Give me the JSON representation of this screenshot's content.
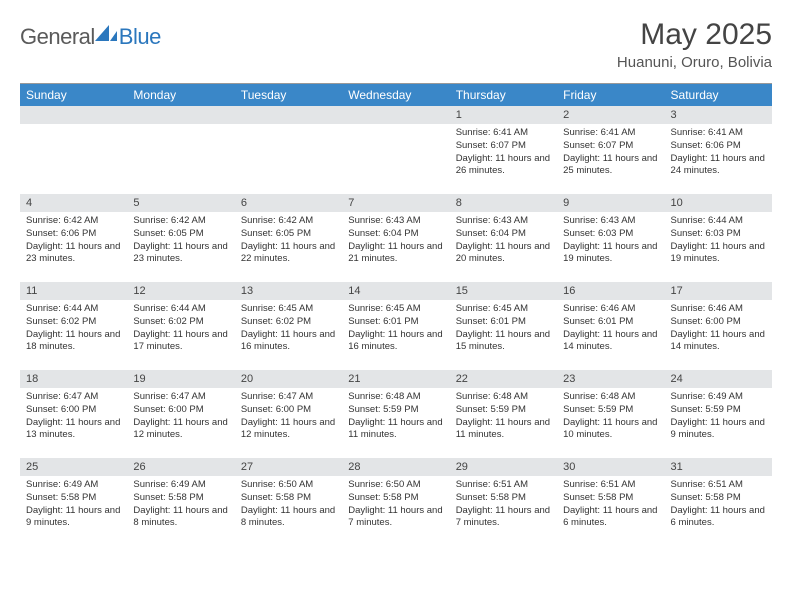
{
  "logo": {
    "text1": "General",
    "text2": "Blue"
  },
  "title": "May 2025",
  "location": "Huanuni, Oruro, Bolivia",
  "colors": {
    "header_bg": "#3a87c8",
    "header_text": "#ffffff",
    "daynum_bg": "#e3e5e7",
    "text": "#333333",
    "logo_gray": "#5a5a5a",
    "logo_blue": "#2b77bd"
  },
  "dow": [
    "Sunday",
    "Monday",
    "Tuesday",
    "Wednesday",
    "Thursday",
    "Friday",
    "Saturday"
  ],
  "weeks": [
    [
      {
        "n": "",
        "sr": "",
        "ss": "",
        "dl": ""
      },
      {
        "n": "",
        "sr": "",
        "ss": "",
        "dl": ""
      },
      {
        "n": "",
        "sr": "",
        "ss": "",
        "dl": ""
      },
      {
        "n": "",
        "sr": "",
        "ss": "",
        "dl": ""
      },
      {
        "n": "1",
        "sr": "Sunrise: 6:41 AM",
        "ss": "Sunset: 6:07 PM",
        "dl": "Daylight: 11 hours and 26 minutes."
      },
      {
        "n": "2",
        "sr": "Sunrise: 6:41 AM",
        "ss": "Sunset: 6:07 PM",
        "dl": "Daylight: 11 hours and 25 minutes."
      },
      {
        "n": "3",
        "sr": "Sunrise: 6:41 AM",
        "ss": "Sunset: 6:06 PM",
        "dl": "Daylight: 11 hours and 24 minutes."
      }
    ],
    [
      {
        "n": "4",
        "sr": "Sunrise: 6:42 AM",
        "ss": "Sunset: 6:06 PM",
        "dl": "Daylight: 11 hours and 23 minutes."
      },
      {
        "n": "5",
        "sr": "Sunrise: 6:42 AM",
        "ss": "Sunset: 6:05 PM",
        "dl": "Daylight: 11 hours and 23 minutes."
      },
      {
        "n": "6",
        "sr": "Sunrise: 6:42 AM",
        "ss": "Sunset: 6:05 PM",
        "dl": "Daylight: 11 hours and 22 minutes."
      },
      {
        "n": "7",
        "sr": "Sunrise: 6:43 AM",
        "ss": "Sunset: 6:04 PM",
        "dl": "Daylight: 11 hours and 21 minutes."
      },
      {
        "n": "8",
        "sr": "Sunrise: 6:43 AM",
        "ss": "Sunset: 6:04 PM",
        "dl": "Daylight: 11 hours and 20 minutes."
      },
      {
        "n": "9",
        "sr": "Sunrise: 6:43 AM",
        "ss": "Sunset: 6:03 PM",
        "dl": "Daylight: 11 hours and 19 minutes."
      },
      {
        "n": "10",
        "sr": "Sunrise: 6:44 AM",
        "ss": "Sunset: 6:03 PM",
        "dl": "Daylight: 11 hours and 19 minutes."
      }
    ],
    [
      {
        "n": "11",
        "sr": "Sunrise: 6:44 AM",
        "ss": "Sunset: 6:02 PM",
        "dl": "Daylight: 11 hours and 18 minutes."
      },
      {
        "n": "12",
        "sr": "Sunrise: 6:44 AM",
        "ss": "Sunset: 6:02 PM",
        "dl": "Daylight: 11 hours and 17 minutes."
      },
      {
        "n": "13",
        "sr": "Sunrise: 6:45 AM",
        "ss": "Sunset: 6:02 PM",
        "dl": "Daylight: 11 hours and 16 minutes."
      },
      {
        "n": "14",
        "sr": "Sunrise: 6:45 AM",
        "ss": "Sunset: 6:01 PM",
        "dl": "Daylight: 11 hours and 16 minutes."
      },
      {
        "n": "15",
        "sr": "Sunrise: 6:45 AM",
        "ss": "Sunset: 6:01 PM",
        "dl": "Daylight: 11 hours and 15 minutes."
      },
      {
        "n": "16",
        "sr": "Sunrise: 6:46 AM",
        "ss": "Sunset: 6:01 PM",
        "dl": "Daylight: 11 hours and 14 minutes."
      },
      {
        "n": "17",
        "sr": "Sunrise: 6:46 AM",
        "ss": "Sunset: 6:00 PM",
        "dl": "Daylight: 11 hours and 14 minutes."
      }
    ],
    [
      {
        "n": "18",
        "sr": "Sunrise: 6:47 AM",
        "ss": "Sunset: 6:00 PM",
        "dl": "Daylight: 11 hours and 13 minutes."
      },
      {
        "n": "19",
        "sr": "Sunrise: 6:47 AM",
        "ss": "Sunset: 6:00 PM",
        "dl": "Daylight: 11 hours and 12 minutes."
      },
      {
        "n": "20",
        "sr": "Sunrise: 6:47 AM",
        "ss": "Sunset: 6:00 PM",
        "dl": "Daylight: 11 hours and 12 minutes."
      },
      {
        "n": "21",
        "sr": "Sunrise: 6:48 AM",
        "ss": "Sunset: 5:59 PM",
        "dl": "Daylight: 11 hours and 11 minutes."
      },
      {
        "n": "22",
        "sr": "Sunrise: 6:48 AM",
        "ss": "Sunset: 5:59 PM",
        "dl": "Daylight: 11 hours and 11 minutes."
      },
      {
        "n": "23",
        "sr": "Sunrise: 6:48 AM",
        "ss": "Sunset: 5:59 PM",
        "dl": "Daylight: 11 hours and 10 minutes."
      },
      {
        "n": "24",
        "sr": "Sunrise: 6:49 AM",
        "ss": "Sunset: 5:59 PM",
        "dl": "Daylight: 11 hours and 9 minutes."
      }
    ],
    [
      {
        "n": "25",
        "sr": "Sunrise: 6:49 AM",
        "ss": "Sunset: 5:58 PM",
        "dl": "Daylight: 11 hours and 9 minutes."
      },
      {
        "n": "26",
        "sr": "Sunrise: 6:49 AM",
        "ss": "Sunset: 5:58 PM",
        "dl": "Daylight: 11 hours and 8 minutes."
      },
      {
        "n": "27",
        "sr": "Sunrise: 6:50 AM",
        "ss": "Sunset: 5:58 PM",
        "dl": "Daylight: 11 hours and 8 minutes."
      },
      {
        "n": "28",
        "sr": "Sunrise: 6:50 AM",
        "ss": "Sunset: 5:58 PM",
        "dl": "Daylight: 11 hours and 7 minutes."
      },
      {
        "n": "29",
        "sr": "Sunrise: 6:51 AM",
        "ss": "Sunset: 5:58 PM",
        "dl": "Daylight: 11 hours and 7 minutes."
      },
      {
        "n": "30",
        "sr": "Sunrise: 6:51 AM",
        "ss": "Sunset: 5:58 PM",
        "dl": "Daylight: 11 hours and 6 minutes."
      },
      {
        "n": "31",
        "sr": "Sunrise: 6:51 AM",
        "ss": "Sunset: 5:58 PM",
        "dl": "Daylight: 11 hours and 6 minutes."
      }
    ]
  ]
}
